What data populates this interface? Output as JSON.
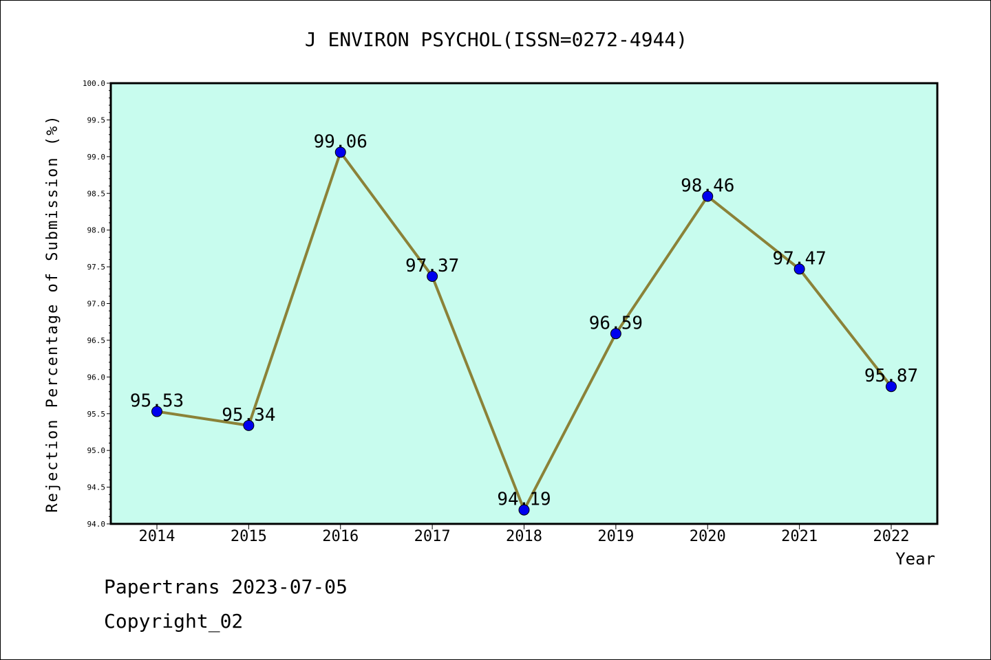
{
  "chart_data": {
    "type": "line",
    "title": "J ENVIRON PSYCHOL(ISSN=0272-4944)",
    "xlabel": "Year",
    "ylabel": "Rejection Percentage of Submission (%)",
    "categories": [
      "2014",
      "2015",
      "2016",
      "2017",
      "2018",
      "2019",
      "2020",
      "2021",
      "2022"
    ],
    "values": [
      95.53,
      95.34,
      99.06,
      97.37,
      94.19,
      96.59,
      98.46,
      97.47,
      95.87
    ],
    "value_labels": [
      "95.53",
      "95.34",
      "99.06",
      "97.37",
      "94.19",
      "96.59",
      "98.46",
      "97.47",
      "95.87"
    ],
    "ylim": [
      94.0,
      100.0
    ],
    "yticks": [
      "94.0",
      "94.5",
      "95.0",
      "95.5",
      "96.0",
      "96.5",
      "97.0",
      "97.5",
      "98.0",
      "98.5",
      "99.0",
      "99.5",
      "100.0"
    ],
    "grid": false,
    "colors": {
      "plot_background": "#c8fcee",
      "line": "#8b8238",
      "marker": "#0000ee"
    }
  },
  "footer": {
    "line1": "Papertrans 2023-07-05",
    "line2": "Copyright_02"
  }
}
